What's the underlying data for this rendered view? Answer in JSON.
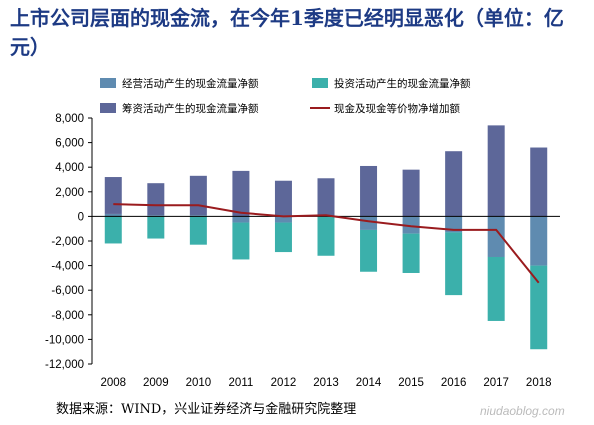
{
  "title": "上市公司层面的现金流，在今年1季度已经明显恶化（单位：亿元）",
  "source": "数据来源：WIND，兴业证券经济与金融研究院整理",
  "watermark": "niudaoblog.com",
  "colors": {
    "title": "#1d3a84",
    "operating": "#5f8bb0",
    "investing": "#3bb0ab",
    "financing": "#5d6799",
    "net_change": "#9a1b1e"
  },
  "chart_data": {
    "type": "bar",
    "categories": [
      "2008",
      "2009",
      "2010",
      "2011",
      "2012",
      "2013",
      "2014",
      "2015",
      "2016",
      "2017",
      "2018"
    ],
    "series": [
      {
        "name": "经营活动产生的现金流量净额",
        "kind": "bar",
        "color": "#5f8bb0",
        "values": [
          200,
          100,
          100,
          -500,
          -500,
          0,
          -1100,
          -1400,
          -1300,
          -3300,
          -4000
        ]
      },
      {
        "name": "投资活动产生的现金流量净额",
        "kind": "bar",
        "color": "#3bb0ab",
        "values": [
          -2200,
          -1800,
          -2300,
          -3000,
          -2400,
          -3200,
          -3400,
          -3200,
          -5100,
          -5200,
          -6800
        ]
      },
      {
        "name": "筹资活动产生的现金流量净额",
        "kind": "bar",
        "color": "#5d6799",
        "values": [
          3000,
          2600,
          3200,
          3700,
          2900,
          3100,
          4100,
          3800,
          5300,
          7400,
          5600
        ]
      },
      {
        "name": "现金及现金等价物净增加额",
        "kind": "line",
        "color": "#9a1b1e",
        "values": [
          1000,
          900,
          900,
          300,
          0,
          100,
          -400,
          -800,
          -1100,
          -1100,
          -5400
        ]
      }
    ],
    "ylim": [
      -12000,
      8000
    ],
    "yticks": [
      8000,
      6000,
      4000,
      2000,
      0,
      -2000,
      -4000,
      -6000,
      -8000,
      -10000,
      -12000
    ],
    "ytick_labels": [
      "8,000",
      "6,000",
      "4,000",
      "2,000",
      "0",
      "-2,000",
      "-4,000",
      "-6,000",
      "-8,000",
      "-10,000",
      "-12,000"
    ],
    "legend_position": "top",
    "grid": false
  }
}
